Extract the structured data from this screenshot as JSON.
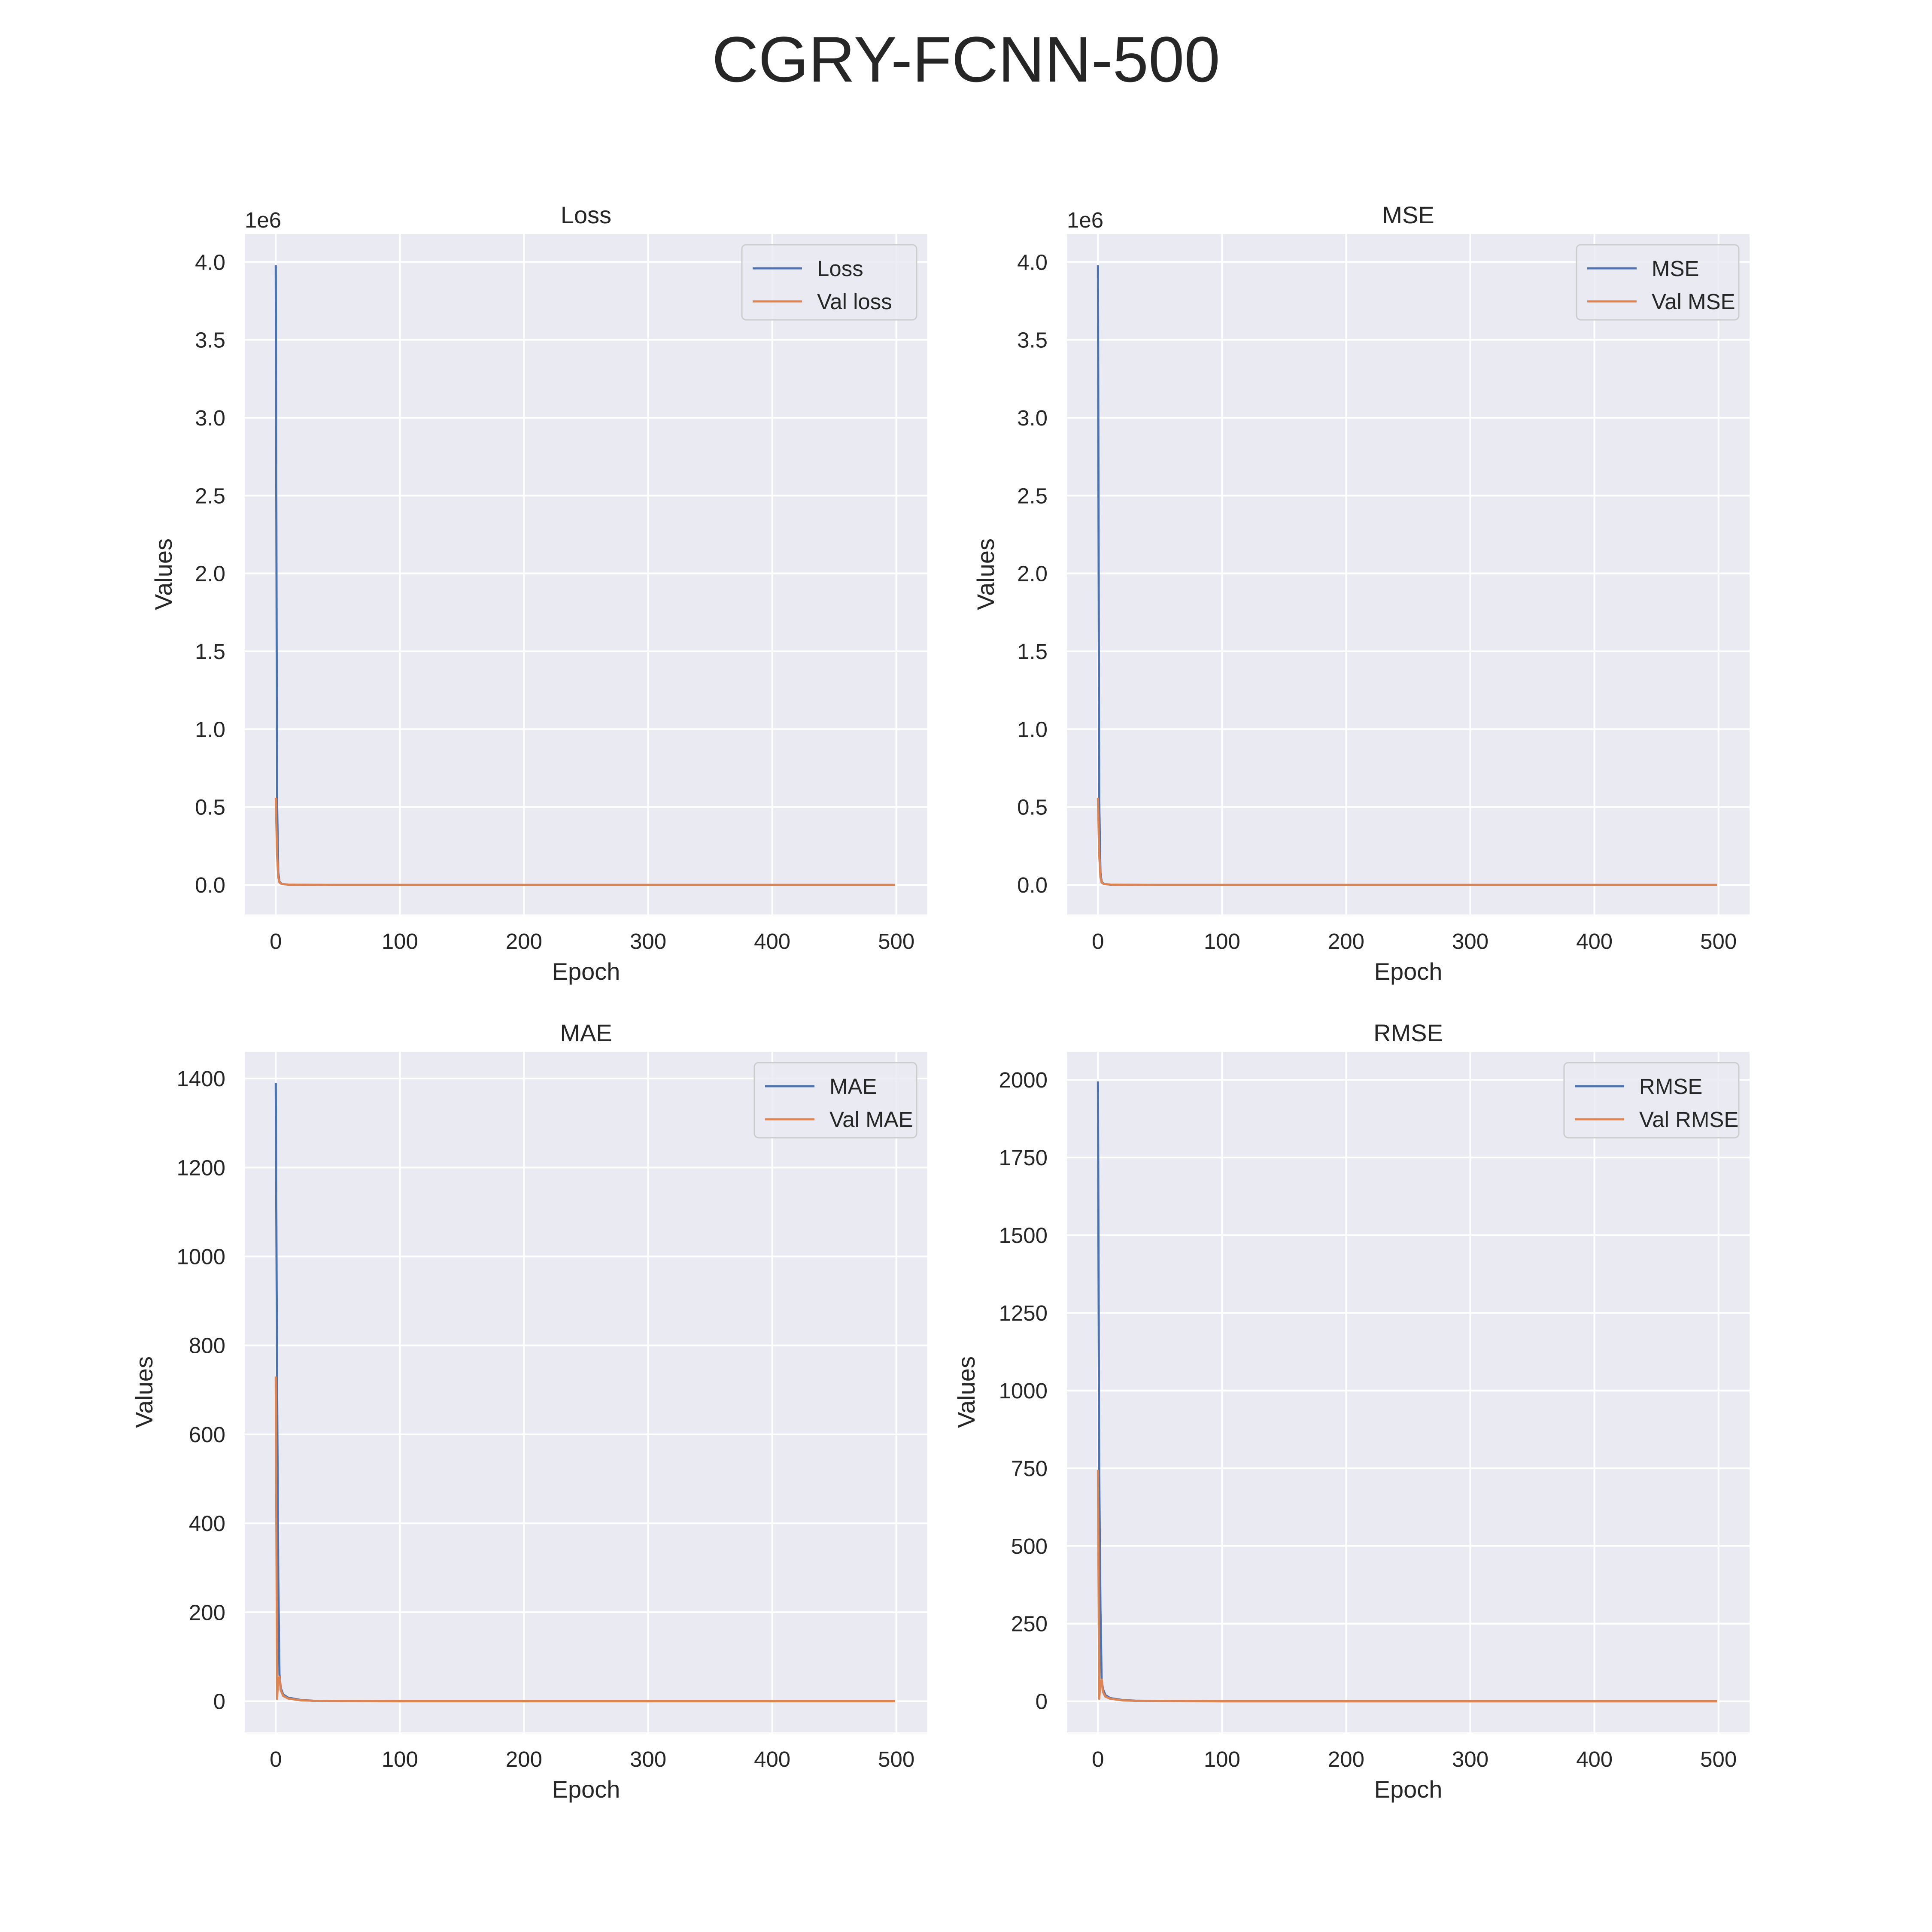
{
  "figure_title": "CGRY-FCNN-500",
  "colors": {
    "series1": "#4c72b0",
    "series2": "#dd8452",
    "panel_bg": "#eaeaf2",
    "grid": "#ffffff",
    "text": "#262626"
  },
  "chart_data": [
    {
      "type": "line",
      "title": "Loss",
      "xlabel": "Epoch",
      "ylabel": "Values",
      "offset_text": "1e6",
      "xlim": [
        -25,
        525
      ],
      "ylim": [
        -0.19,
        4.18
      ],
      "xticks": [
        0,
        100,
        200,
        300,
        400,
        500
      ],
      "yticks": [
        0.0,
        0.5,
        1.0,
        1.5,
        2.0,
        2.5,
        3.0,
        3.5,
        4.0
      ],
      "ytick_labels": [
        "0.0",
        "0.5",
        "1.0",
        "1.5",
        "2.0",
        "2.5",
        "3.0",
        "3.5",
        "4.0"
      ],
      "grid": true,
      "legend_position": "top-right",
      "series": [
        {
          "name": "Loss",
          "x": [
            0,
            1,
            2,
            3,
            5,
            10,
            20,
            50,
            100,
            200,
            300,
            400,
            499
          ],
          "y": [
            3.98,
            0.55,
            0.08,
            0.02,
            0.005,
            0.002,
            0.001,
            0,
            0,
            0,
            0,
            0,
            0
          ]
        },
        {
          "name": "Val loss",
          "x": [
            0,
            1,
            2,
            3,
            5,
            10,
            20,
            50,
            100,
            200,
            300,
            400,
            499
          ],
          "y": [
            0.56,
            0.2,
            0.05,
            0.015,
            0.005,
            0.002,
            0.001,
            0,
            0,
            0,
            0,
            0,
            0
          ]
        }
      ]
    },
    {
      "type": "line",
      "title": "MSE",
      "xlabel": "Epoch",
      "ylabel": "Values",
      "offset_text": "1e6",
      "xlim": [
        -25,
        525
      ],
      "ylim": [
        -0.19,
        4.18
      ],
      "xticks": [
        0,
        100,
        200,
        300,
        400,
        500
      ],
      "yticks": [
        0.0,
        0.5,
        1.0,
        1.5,
        2.0,
        2.5,
        3.0,
        3.5,
        4.0
      ],
      "ytick_labels": [
        "0.0",
        "0.5",
        "1.0",
        "1.5",
        "2.0",
        "2.5",
        "3.0",
        "3.5",
        "4.0"
      ],
      "grid": true,
      "legend_position": "top-right",
      "series": [
        {
          "name": "MSE",
          "x": [
            0,
            1,
            2,
            3,
            5,
            10,
            20,
            50,
            100,
            200,
            300,
            400,
            499
          ],
          "y": [
            3.98,
            0.55,
            0.08,
            0.02,
            0.005,
            0.002,
            0.001,
            0,
            0,
            0,
            0,
            0,
            0
          ]
        },
        {
          "name": "Val MSE",
          "x": [
            0,
            1,
            2,
            3,
            5,
            10,
            20,
            50,
            100,
            200,
            300,
            400,
            499
          ],
          "y": [
            0.56,
            0.2,
            0.05,
            0.015,
            0.005,
            0.002,
            0.001,
            0,
            0,
            0,
            0,
            0,
            0
          ]
        }
      ]
    },
    {
      "type": "line",
      "title": "MAE",
      "xlabel": "Epoch",
      "ylabel": "Values",
      "offset_text": "",
      "xlim": [
        -25,
        525
      ],
      "ylim": [
        -70,
        1460
      ],
      "xticks": [
        0,
        100,
        200,
        300,
        400,
        500
      ],
      "yticks": [
        0,
        200,
        400,
        600,
        800,
        1000,
        1200,
        1400
      ],
      "ytick_labels": [
        "0",
        "200",
        "400",
        "600",
        "800",
        "1000",
        "1200",
        "1400"
      ],
      "grid": true,
      "legend_position": "top-right",
      "series": [
        {
          "name": "MAE",
          "x": [
            0,
            1,
            2,
            3,
            4,
            6,
            10,
            20,
            30,
            50,
            100,
            200,
            300,
            400,
            499
          ],
          "y": [
            1390,
            730,
            280,
            60,
            30,
            15,
            8,
            3,
            1,
            0.5,
            0,
            0,
            0,
            0,
            0
          ]
        },
        {
          "name": "Val MAE",
          "x": [
            0,
            1,
            2,
            3,
            4,
            6,
            10,
            20,
            30,
            50,
            100,
            200,
            300,
            400,
            499
          ],
          "y": [
            730,
            5,
            50,
            55,
            25,
            12,
            6,
            2,
            1,
            0.5,
            0,
            0,
            0,
            0,
            0
          ]
        }
      ]
    },
    {
      "type": "line",
      "title": "RMSE",
      "xlabel": "Epoch",
      "ylabel": "Values",
      "offset_text": "",
      "xlim": [
        -25,
        525
      ],
      "ylim": [
        -100,
        2090
      ],
      "xticks": [
        0,
        100,
        200,
        300,
        400,
        500
      ],
      "yticks": [
        0,
        250,
        500,
        750,
        1000,
        1250,
        1500,
        1750,
        2000
      ],
      "ytick_labels": [
        "0",
        "250",
        "500",
        "750",
        "1000",
        "1250",
        "1500",
        "1750",
        "2000"
      ],
      "grid": true,
      "legend_position": "top-right",
      "series": [
        {
          "name": "RMSE",
          "x": [
            0,
            1,
            2,
            3,
            4,
            6,
            10,
            20,
            30,
            50,
            100,
            200,
            300,
            400,
            499
          ],
          "y": [
            1995,
            740,
            300,
            70,
            40,
            20,
            10,
            4,
            2,
            1,
            0,
            0,
            0,
            0,
            0
          ]
        },
        {
          "name": "Val RMSE",
          "x": [
            0,
            1,
            2,
            3,
            4,
            6,
            10,
            20,
            30,
            50,
            100,
            200,
            300,
            400,
            499
          ],
          "y": [
            745,
            8,
            60,
            70,
            30,
            15,
            8,
            3,
            1.5,
            1,
            0,
            0,
            0,
            0,
            0
          ]
        }
      ]
    }
  ]
}
